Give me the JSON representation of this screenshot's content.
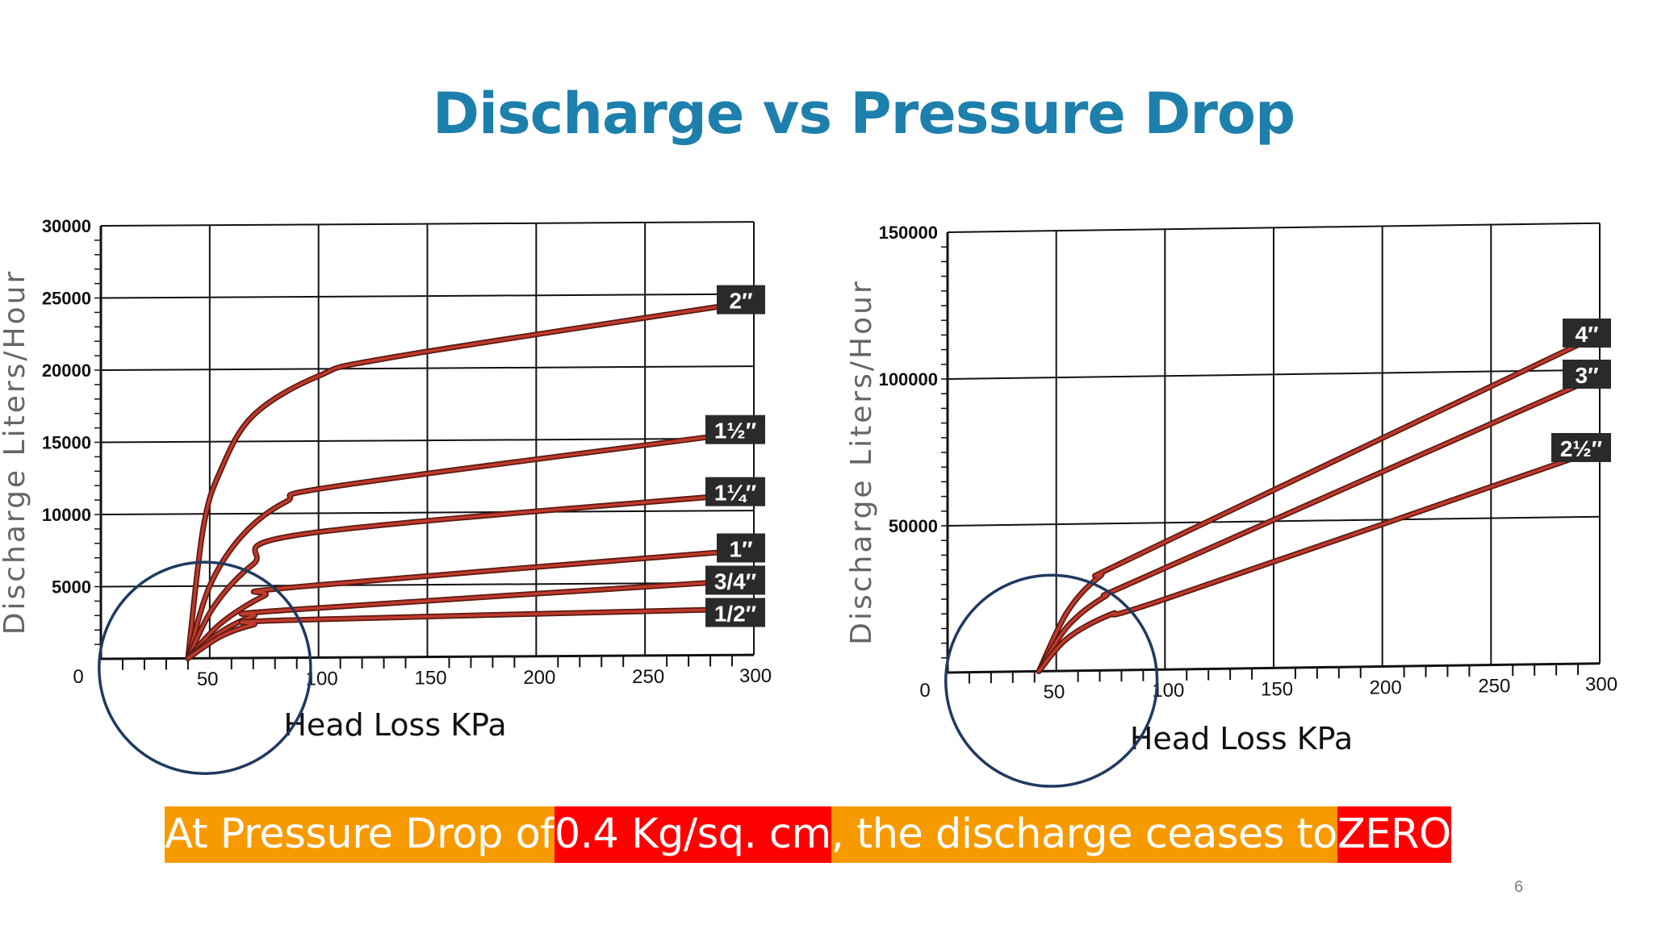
{
  "title": "Discharge vs Pressure Drop",
  "caption": {
    "part1": "At Pressure Drop of ",
    "part2": "0.4 Kg/sq. cm",
    "part3": ", the discharge ceases to ",
    "part4": "ZERO",
    "orange": "#f79a00",
    "red": "#ff0000"
  },
  "page_number": "6",
  "colors": {
    "curve": "#c0392b",
    "label_bg": "#2a2a2a",
    "circle": "#1f3a60"
  },
  "chart_data": [
    {
      "type": "line",
      "xlabel": "Head Loss KPa",
      "ylabel": "Discharge Liters/Hour",
      "x_ticks": [
        "0",
        "50",
        "100",
        "150",
        "200",
        "250",
        "300"
      ],
      "y_ticks": [
        "30000",
        "25000",
        "20000",
        "15000",
        "10000",
        "5000"
      ],
      "xlim": [
        0,
        300
      ],
      "ylim": [
        0,
        30000
      ],
      "highlight": {
        "x": 50,
        "y": 0,
        "radius_kpa": 36
      },
      "series": [
        {
          "name": "2″",
          "x": [
            40,
            47,
            55,
            70,
            100,
            135,
            300
          ],
          "values": [
            0,
            9000,
            13000,
            16800,
            19500,
            20800,
            24500
          ]
        },
        {
          "name": "1½″",
          "x": [
            40,
            50,
            65,
            85,
            110,
            300
          ],
          "values": [
            0,
            5000,
            8500,
            10800,
            11900,
            15500
          ]
        },
        {
          "name": "1¼″",
          "x": [
            40,
            52,
            70,
            95,
            300
          ],
          "values": [
            0,
            3600,
            6500,
            8600,
            11200
          ]
        },
        {
          "name": "1″",
          "x": [
            40,
            55,
            75,
            90,
            300
          ],
          "values": [
            0,
            2400,
            4300,
            4900,
            7300
          ]
        },
        {
          "name": "3/4″",
          "x": [
            40,
            55,
            70,
            85,
            300
          ],
          "values": [
            0,
            1800,
            2900,
            3300,
            5200
          ]
        },
        {
          "name": "1/2″",
          "x": [
            40,
            55,
            70,
            85,
            300
          ],
          "values": [
            0,
            1500,
            2300,
            2600,
            3200
          ]
        }
      ]
    },
    {
      "type": "line",
      "xlabel": "Head Loss KPa",
      "ylabel": "Discharge Liters/Hour",
      "x_ticks": [
        "0",
        "50",
        "100",
        "150",
        "200",
        "250",
        "300"
      ],
      "y_ticks": [
        "150000",
        "100000",
        "50000"
      ],
      "xlim": [
        0,
        300
      ],
      "ylim": [
        0,
        150000
      ],
      "highlight": {
        "x": 50,
        "y": 0,
        "radius_kpa": 36
      },
      "series": [
        {
          "name": "4″",
          "x": [
            42,
            55,
            70,
            90,
            300
          ],
          "values": [
            0,
            20000,
            32000,
            40000,
            112000
          ]
        },
        {
          "name": "3″",
          "x": [
            42,
            55,
            72,
            95,
            300
          ],
          "values": [
            0,
            15000,
            25000,
            33000,
            98000
          ]
        },
        {
          "name": "2½″",
          "x": [
            42,
            55,
            75,
            100,
            300
          ],
          "values": [
            0,
            11000,
            19000,
            24000,
            73000
          ]
        }
      ]
    }
  ]
}
